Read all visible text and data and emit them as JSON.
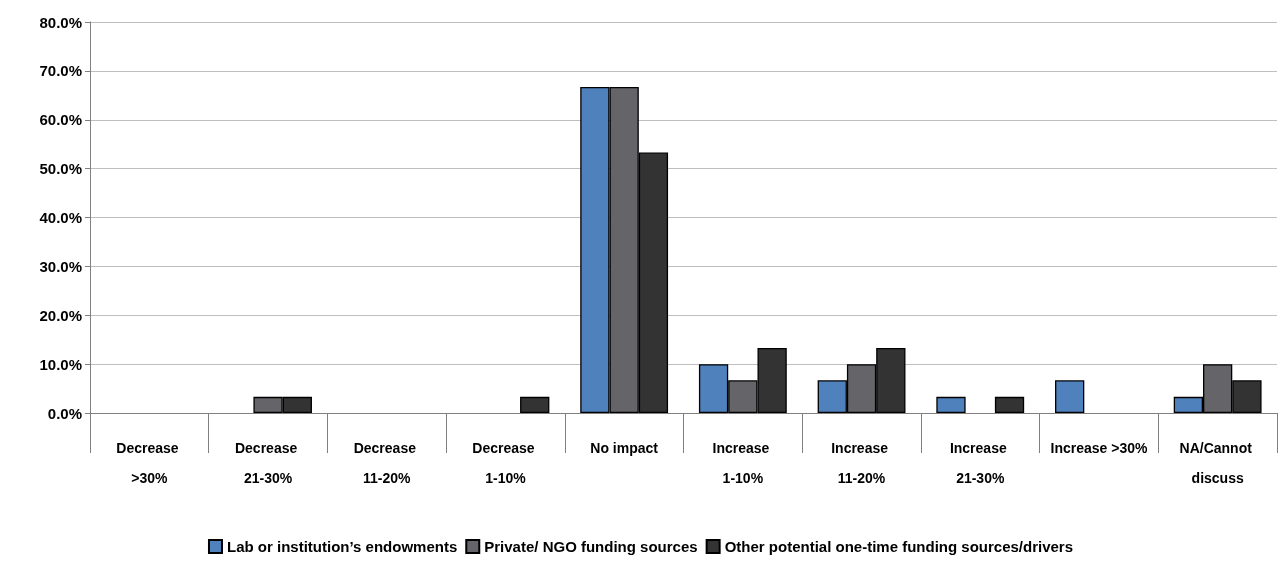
{
  "chart_data": {
    "type": "bar",
    "categories": [
      "Decrease >30%",
      "Decrease 21-30%",
      "Decrease 11-20%",
      "Decrease 1-10%",
      "No impact",
      "Increase 1-10%",
      "Increase 11-20%",
      "Increase 21-30%",
      "Increase >30%",
      "NA/Cannot discuss"
    ],
    "series": [
      {
        "name": "Lab or institution’s endowments",
        "color": "#4f81bd",
        "values": [
          0,
          0,
          0,
          0,
          66.7,
          10,
          6.7,
          3.3,
          6.7,
          3.3
        ]
      },
      {
        "name": "Private/ NGO funding sources",
        "color": "#646469",
        "values": [
          0,
          3.3,
          0,
          0,
          66.7,
          6.7,
          10,
          0,
          0,
          10
        ]
      },
      {
        "name": "Other potential one-time funding sources/drivers",
        "color": "#333333",
        "values": [
          0,
          3.3,
          0,
          3.3,
          53.3,
          13.3,
          13.3,
          3.3,
          0,
          6.7
        ]
      }
    ],
    "ylim": [
      0,
      80
    ],
    "yticks": [
      {
        "value": 0,
        "label": "0.0%"
      },
      {
        "value": 10,
        "label": "10.0%"
      },
      {
        "value": 20,
        "label": "20.0%"
      },
      {
        "value": 30,
        "label": "30.0%"
      },
      {
        "value": 40,
        "label": "40.0%"
      },
      {
        "value": 50,
        "label": "50.0%"
      },
      {
        "value": 60,
        "label": "60.0%"
      },
      {
        "value": 70,
        "label": "70.0%"
      },
      {
        "value": 80,
        "label": "80.0%"
      }
    ],
    "grid": "y",
    "legend": "bottom"
  }
}
